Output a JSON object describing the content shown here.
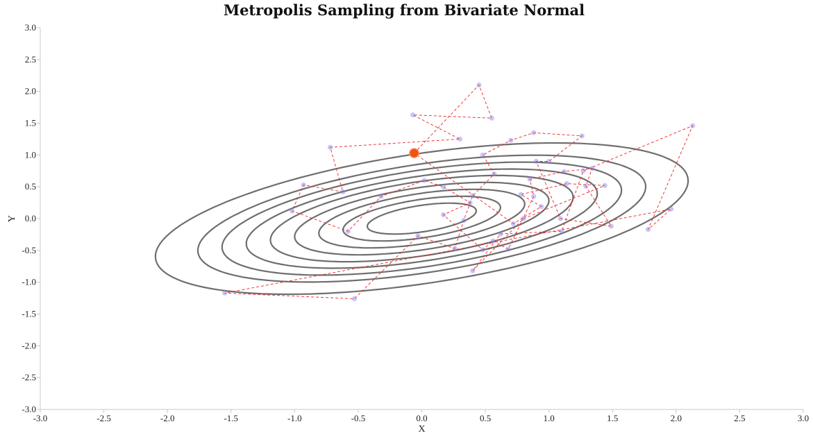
{
  "chart_data": {
    "type": "scatter",
    "title": "Metropolis Sampling from Bivariate Normal",
    "xlabel": "X",
    "ylabel": "Y",
    "xlim": [
      -3.0,
      3.0
    ],
    "ylim": [
      -3.0,
      3.0
    ],
    "x_ticks": [
      "-3.0",
      "-2.5",
      "-2.0",
      "-1.5",
      "-1.0",
      "-0.5",
      "0.0",
      "0.5",
      "1.0",
      "1.5",
      "2.0",
      "2.5",
      "3.0"
    ],
    "y_ticks": [
      "3.0",
      "2.5",
      "2.0",
      "1.5",
      "1.0",
      "0.5",
      "0.0",
      "-0.5",
      "-1.0",
      "-1.5",
      "-2.0",
      "-2.5",
      "-3.0"
    ],
    "grid": false,
    "contours": {
      "center": [
        0.0,
        0.0
      ],
      "angle_deg": 20,
      "semi_axis_major": [
        0.45,
        0.65,
        0.85,
        1.05,
        1.25,
        1.45,
        1.65,
        1.85,
        2.2
      ],
      "semi_axis_minor": [
        0.2,
        0.29,
        0.38,
        0.47,
        0.56,
        0.64,
        0.73,
        0.82,
        0.98
      ],
      "color": "#6e6e6e"
    },
    "chain": {
      "color": "#ee2222",
      "points": [
        [
          -0.06,
          1.03
        ],
        [
          0.45,
          2.1
        ],
        [
          0.55,
          1.58
        ],
        [
          -0.07,
          1.63
        ],
        [
          0.3,
          1.25
        ],
        [
          -0.72,
          1.12
        ],
        [
          -0.62,
          0.42
        ],
        [
          -0.93,
          0.53
        ],
        [
          -1.02,
          0.12
        ],
        [
          -0.58,
          -0.2
        ],
        [
          -0.32,
          0.35
        ],
        [
          0.02,
          0.6
        ],
        [
          0.17,
          0.5
        ],
        [
          0.38,
          0.25
        ],
        [
          0.17,
          0.06
        ],
        [
          0.48,
          -0.49
        ],
        [
          0.56,
          -0.35
        ],
        [
          0.68,
          -0.48
        ],
        [
          0.88,
          0.35
        ],
        [
          0.85,
          0.62
        ],
        [
          1.12,
          0.74
        ],
        [
          1.34,
          0.79
        ],
        [
          1.29,
          0.51
        ],
        [
          1.49,
          -0.12
        ],
        [
          1.09,
          0.0
        ],
        [
          0.9,
          0.9
        ],
        [
          1.0,
          0.9
        ],
        [
          1.26,
          1.3
        ],
        [
          0.88,
          1.35
        ],
        [
          0.7,
          1.23
        ],
        [
          0.48,
          1.0
        ],
        [
          0.57,
          0.7
        ],
        [
          0.4,
          0.36
        ],
        [
          0.33,
          -0.03
        ],
        [
          0.26,
          -0.47
        ],
        [
          -0.03,
          -0.27
        ],
        [
          -0.53,
          -1.26
        ],
        [
          -1.55,
          -1.17
        ],
        [
          1.96,
          0.15
        ],
        [
          1.78,
          -0.17
        ],
        [
          2.13,
          1.46
        ],
        [
          1.27,
          0.75
        ],
        [
          1.1,
          -0.2
        ],
        [
          0.62,
          -0.24
        ],
        [
          0.4,
          -0.82
        ],
        [
          0.8,
          0.0
        ],
        [
          1.44,
          0.52
        ],
        [
          1.14,
          0.55
        ],
        [
          0.78,
          0.38
        ],
        [
          0.94,
          0.19
        ],
        [
          0.72,
          -0.08
        ],
        [
          -0.06,
          1.03
        ]
      ]
    },
    "current_point": {
      "x": -0.06,
      "y": 1.03,
      "color": "#f05010"
    },
    "sample_color": "#8a7ee8"
  }
}
